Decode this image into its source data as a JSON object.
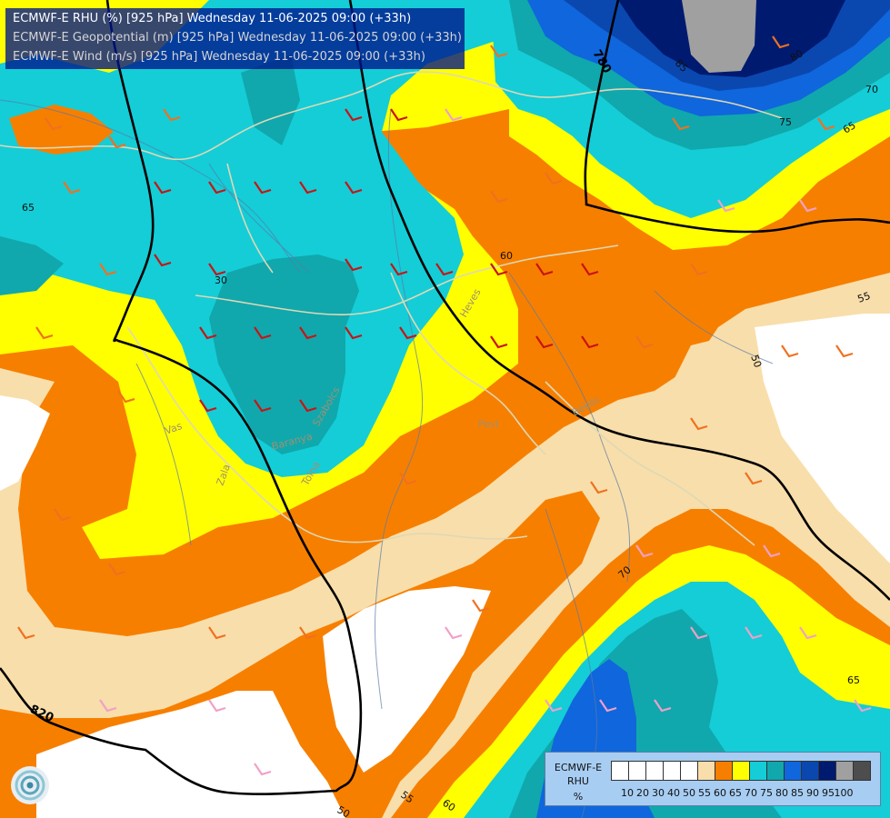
{
  "titles": {
    "line1": "ECMWF-E RHU (%) [925 hPa] Wednesday 11-06-2025 09:00 (+33h)",
    "line2": "ECMWF-E Geopotential (m) [925 hPa] Wednesday 11-06-2025 09:00 (+33h)",
    "line3": "ECMWF-E Wind (m/s) [925 hPa] Wednesday 11-06-2025 09:00 (+33h)"
  },
  "place_labels": [
    "Vas",
    "Zala",
    "Tolna",
    "Pest",
    "Heves",
    "Békés",
    "Baranya",
    "Szabolcs"
  ],
  "contour_labels": {
    "geopotential": [
      "780",
      "820"
    ],
    "rhu": [
      "30",
      "50",
      "55",
      "60",
      "65",
      "70",
      "75",
      "80",
      "85"
    ]
  },
  "legend": {
    "name_lines": [
      "ECMWF-E",
      "RHU",
      "%"
    ],
    "ticks": [
      "10",
      "20",
      "30",
      "40",
      "50",
      "55",
      "60",
      "65",
      "70",
      "75",
      "80",
      "85",
      "90",
      "95",
      "100"
    ],
    "colors": [
      "#ffffff",
      "#ffffff",
      "#ffffff",
      "#ffffff",
      "#ffffff",
      "#f8deaa",
      "#f77f00",
      "#ffff00",
      "#14cdd7",
      "#10a8ac",
      "#1066dc",
      "#0a48b0",
      "#001a70",
      "#a0a0a0",
      "#4d4d4d"
    ]
  },
  "colors": {
    "rh_55": "#f8deaa",
    "rh_60": "#f77f00",
    "rh_65": "#ffff00",
    "rh_70": "#14cdd7",
    "rh_75": "#10a8ac",
    "rh_80": "#1066dc",
    "rh_85": "#0a48b0",
    "rh_90": "#001a70",
    "rh_95": "#a0a0a0",
    "rh_below_55": "#ffffff",
    "wind_pink": "#f0a0c8",
    "wind_orange": "#f07020",
    "wind_red": "#c81414",
    "borders": "#ded8b6",
    "rivers": "#5a7aa8",
    "isohypse": "#000000"
  },
  "icons": [
    "ecmwf-logo-icon",
    "wind-barb-icon"
  ]
}
